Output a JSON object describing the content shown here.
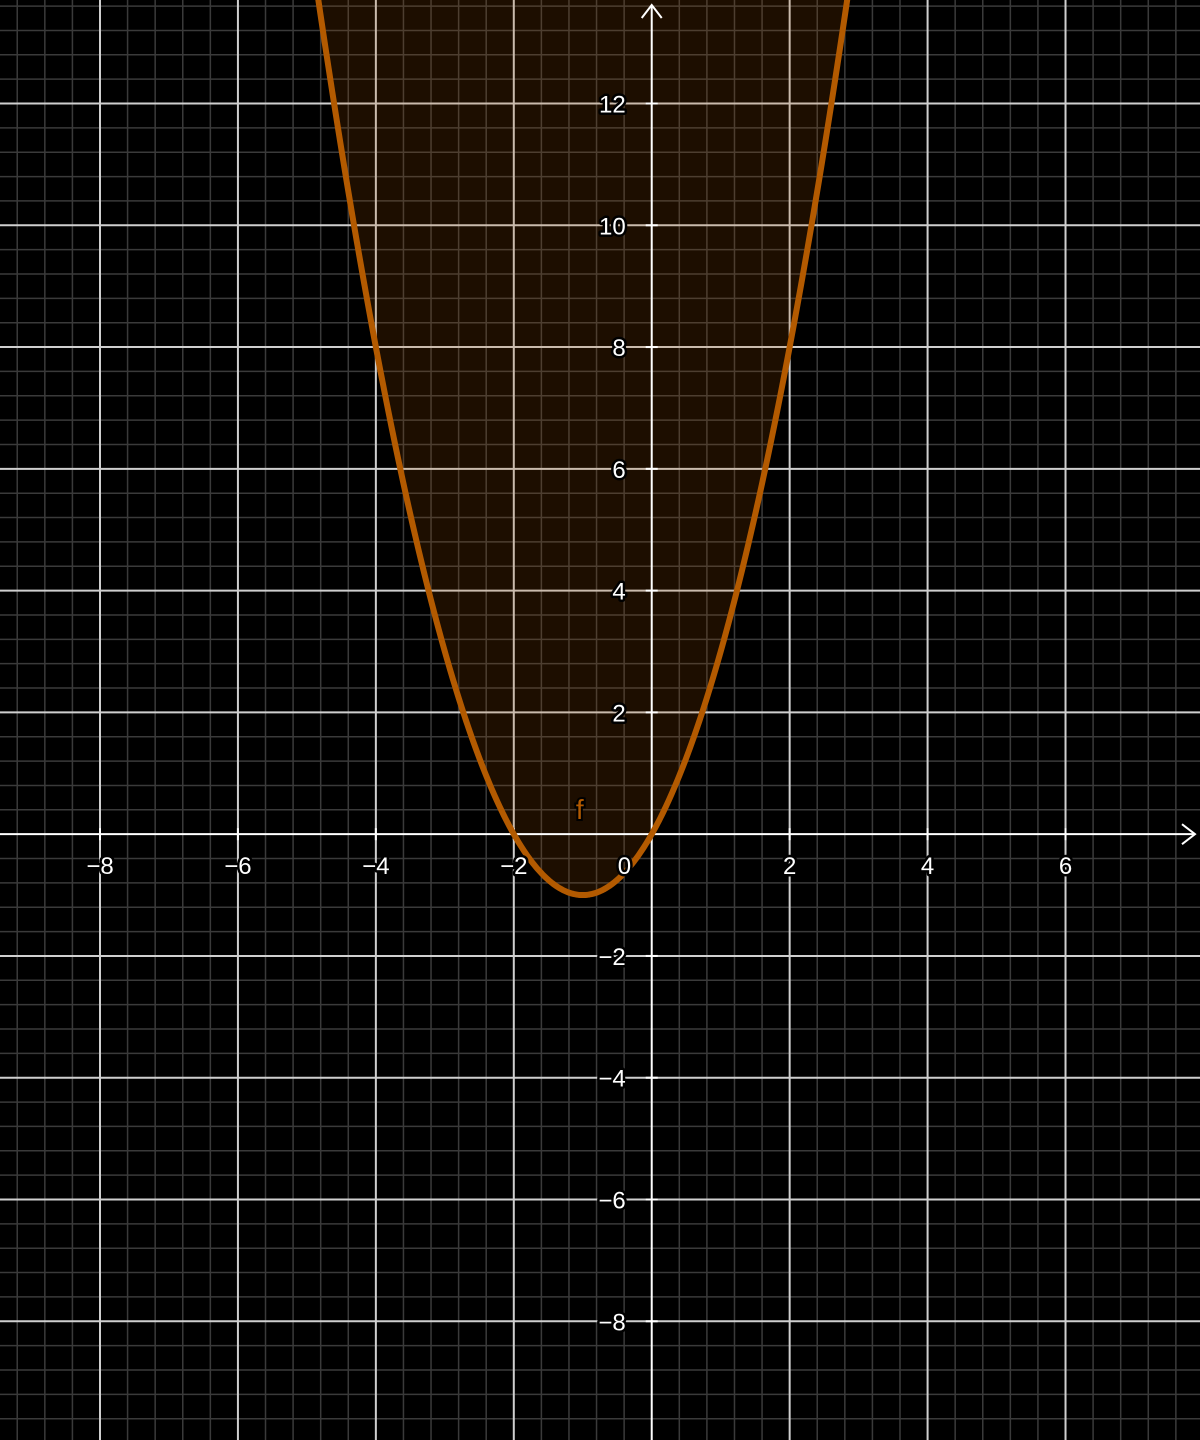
{
  "colors": {
    "background": "#000000",
    "grid_major": "#cfcfcf",
    "grid_minor": "#3a3a3a",
    "axis": "#ffffff",
    "curve": "#b35a00",
    "region_fill": "#b35a00"
  },
  "chart_data": {
    "type": "line",
    "xlim": [
      -9.45,
      7.95
    ],
    "ylim": [
      -9.95,
      13.7
    ],
    "x_ticks": [
      -8,
      -6,
      -4,
      -2,
      0,
      2,
      4,
      6
    ],
    "y_ticks": [
      -8,
      -6,
      -4,
      -2,
      2,
      4,
      6,
      8,
      10,
      12
    ],
    "x_tick_labels": [
      "−8",
      "−6",
      "−4",
      "−2",
      "0",
      "2",
      "4",
      "6"
    ],
    "y_tick_labels": [
      "−8",
      "−6",
      "−4",
      "−2",
      "2",
      "4",
      "6",
      "8",
      "10",
      "12"
    ],
    "major_grid_step": 2,
    "minor_grid_step": 0.4,
    "grid": true,
    "series": [
      {
        "name": "f",
        "function": {
          "kind": "quadratic",
          "a": 1,
          "b": 2,
          "c": 0
        },
        "x": [
          -4.9,
          -4,
          -3,
          -2,
          -1,
          0,
          1,
          2,
          2.8
        ],
        "y": [
          14.21,
          8,
          3,
          0,
          -1,
          0,
          3,
          8,
          13.44
        ],
        "shaded_above": true
      }
    ],
    "labels": {
      "curve_name": "f",
      "curve_label_x": -1.1,
      "curve_label_y": 0.25
    }
  }
}
